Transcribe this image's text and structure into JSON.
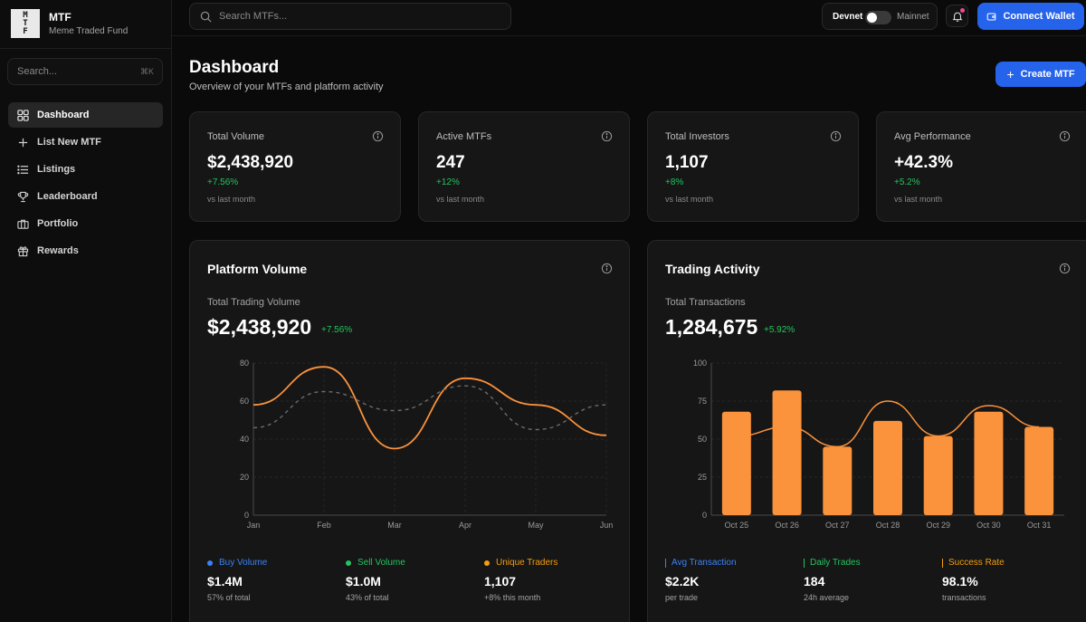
{
  "brand": {
    "logo_letters": [
      "M",
      "T",
      "F"
    ],
    "title": "MTF",
    "subtitle": "Meme Traded Fund"
  },
  "sidebar": {
    "search_placeholder": "Search...",
    "search_shortcut": "⌘K",
    "items": [
      {
        "label": "Dashboard",
        "icon": "dashboard-grid-icon",
        "active": true
      },
      {
        "label": "List New MTF",
        "icon": "plus-icon",
        "active": false
      },
      {
        "label": "Listings",
        "icon": "list-icon",
        "active": false
      },
      {
        "label": "Leaderboard",
        "icon": "trophy-icon",
        "active": false
      },
      {
        "label": "Portfolio",
        "icon": "briefcase-icon",
        "active": false
      },
      {
        "label": "Rewards",
        "icon": "gift-icon",
        "active": false
      }
    ]
  },
  "topbar": {
    "search_placeholder": "Search MTFs...",
    "network_left": "Devnet",
    "network_right": "Mainnet",
    "connect_label": "Connect Wallet"
  },
  "header": {
    "title": "Dashboard",
    "subtitle": "Overview of your MTFs and platform activity",
    "create_label": "Create MTF"
  },
  "stats": [
    {
      "label": "Total Volume",
      "value": "$2,438,920",
      "change": "+7.56%",
      "note": "vs last month"
    },
    {
      "label": "Active MTFs",
      "value": "247",
      "change": "+12%",
      "note": "vs last month"
    },
    {
      "label": "Total Investors",
      "value": "1,107",
      "change": "+8%",
      "note": "vs last month"
    },
    {
      "label": "Avg Performance",
      "value": "+42.3%",
      "change": "+5.2%",
      "note": "vs last month"
    }
  ],
  "colors": {
    "accent": "#2563eb",
    "orange": "#fb923c",
    "positive": "#22c55e",
    "pink": "#ec4899",
    "buy": "#3b82f6",
    "sell": "#22c55e",
    "traders": "#f59e0b"
  },
  "volume_panel": {
    "title": "Platform Volume",
    "sub_label": "Total Trading Volume",
    "big_value": "$2,438,920",
    "big_change": "+7.56%",
    "legend": [
      {
        "label": "Buy Volume",
        "value": "$1.4M",
        "note": "57% of total",
        "color": "#3b82f6"
      },
      {
        "label": "Sell Volume",
        "value": "$1.0M",
        "note": "43% of total",
        "color": "#22c55e"
      },
      {
        "label": "Unique Traders",
        "value": "1,107",
        "note": "+8% this month",
        "color": "#f59e0b"
      }
    ]
  },
  "activity_panel": {
    "title": "Trading Activity",
    "sub_label": "Total Transactions",
    "big_value": "1,284,675",
    "big_change": "+5.92%",
    "legend": [
      {
        "label": "Avg Transaction",
        "value": "$2.2K",
        "note": "per trade",
        "color": "#3b82f6"
      },
      {
        "label": "Daily Trades",
        "value": "184",
        "note": "24h average",
        "color": "#22c55e"
      },
      {
        "label": "Success Rate",
        "value": "98.1%",
        "note": "transactions",
        "color": "#f59e0b"
      }
    ]
  },
  "chart_data": [
    {
      "type": "line",
      "categories": [
        "Jan",
        "Feb",
        "Mar",
        "Apr",
        "May",
        "Jun"
      ],
      "ylim": [
        0,
        80
      ],
      "yticks": [
        0,
        20,
        40,
        60,
        80
      ],
      "grid": true,
      "series": [
        {
          "style": "solid",
          "color": "#fb923c",
          "values": [
            58,
            78,
            35,
            72,
            58,
            42
          ]
        },
        {
          "style": "dashed",
          "color": "#6b6b6b",
          "values": [
            46,
            65,
            55,
            68,
            45,
            58
          ]
        }
      ]
    },
    {
      "type": "bar",
      "categories": [
        "Oct 25",
        "Oct 26",
        "Oct 27",
        "Oct 28",
        "Oct 29",
        "Oct 30",
        "Oct 31"
      ],
      "ylim": [
        0,
        100
      ],
      "yticks": [
        0,
        25,
        50,
        75,
        100
      ],
      "grid": true,
      "series": [
        {
          "type": "bar",
          "color": "#fb923c",
          "values": [
            68,
            82,
            45,
            62,
            52,
            68,
            58
          ]
        },
        {
          "type": "line",
          "color": "#fb923c",
          "values": [
            52,
            58,
            45,
            75,
            52,
            72,
            58
          ]
        }
      ]
    }
  ]
}
